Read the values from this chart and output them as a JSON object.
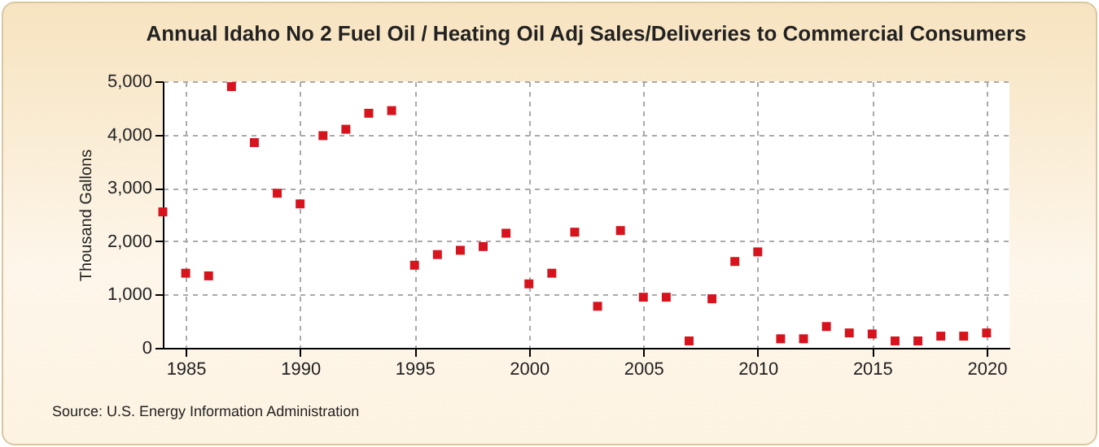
{
  "chart_data": {
    "type": "scatter",
    "title": "Annual Idaho No 2 Fuel Oil / Heating Oil Adj Sales/Deliveries to Commercial Consumers",
    "ylabel": "Thousand Gallons",
    "annotations": [
      "Source: U.S. Energy Information Administration"
    ],
    "x": [
      1984,
      1985,
      1986,
      1987,
      1988,
      1989,
      1990,
      1991,
      1992,
      1993,
      1994,
      1995,
      1996,
      1997,
      1998,
      1999,
      2000,
      2001,
      2002,
      2003,
      2004,
      2005,
      2006,
      2007,
      2008,
      2009,
      2010,
      2011,
      2012,
      2013,
      2014,
      2015,
      2016,
      2017,
      2018,
      2019,
      2020
    ],
    "series": [
      {
        "color": "#d7141e",
        "values": [
          2550,
          1400,
          1350,
          4900,
          3850,
          2900,
          2700,
          3980,
          4100,
          4400,
          4450,
          1550,
          1750,
          1830,
          1900,
          2150,
          1200,
          1400,
          2170,
          780,
          2200,
          950,
          950,
          130,
          920,
          1620,
          1800,
          170,
          170,
          400,
          280,
          260,
          130,
          130,
          220,
          220,
          280
        ]
      }
    ],
    "xlim": [
      1984,
      2021
    ],
    "xticks": [
      1985,
      1990,
      1995,
      2000,
      2005,
      2010,
      2015,
      2020
    ],
    "ylim": [
      0,
      5000
    ],
    "yticks": [
      0,
      {
        "value": 1000,
        "label": "1,000"
      },
      {
        "value": 2000,
        "label": "2,000"
      },
      {
        "value": 3000,
        "label": "3,000"
      },
      {
        "value": 4000,
        "label": "4,000"
      },
      {
        "value": 5000,
        "label": "5,000"
      }
    ],
    "grid": true,
    "marker": "square",
    "legend": false
  }
}
